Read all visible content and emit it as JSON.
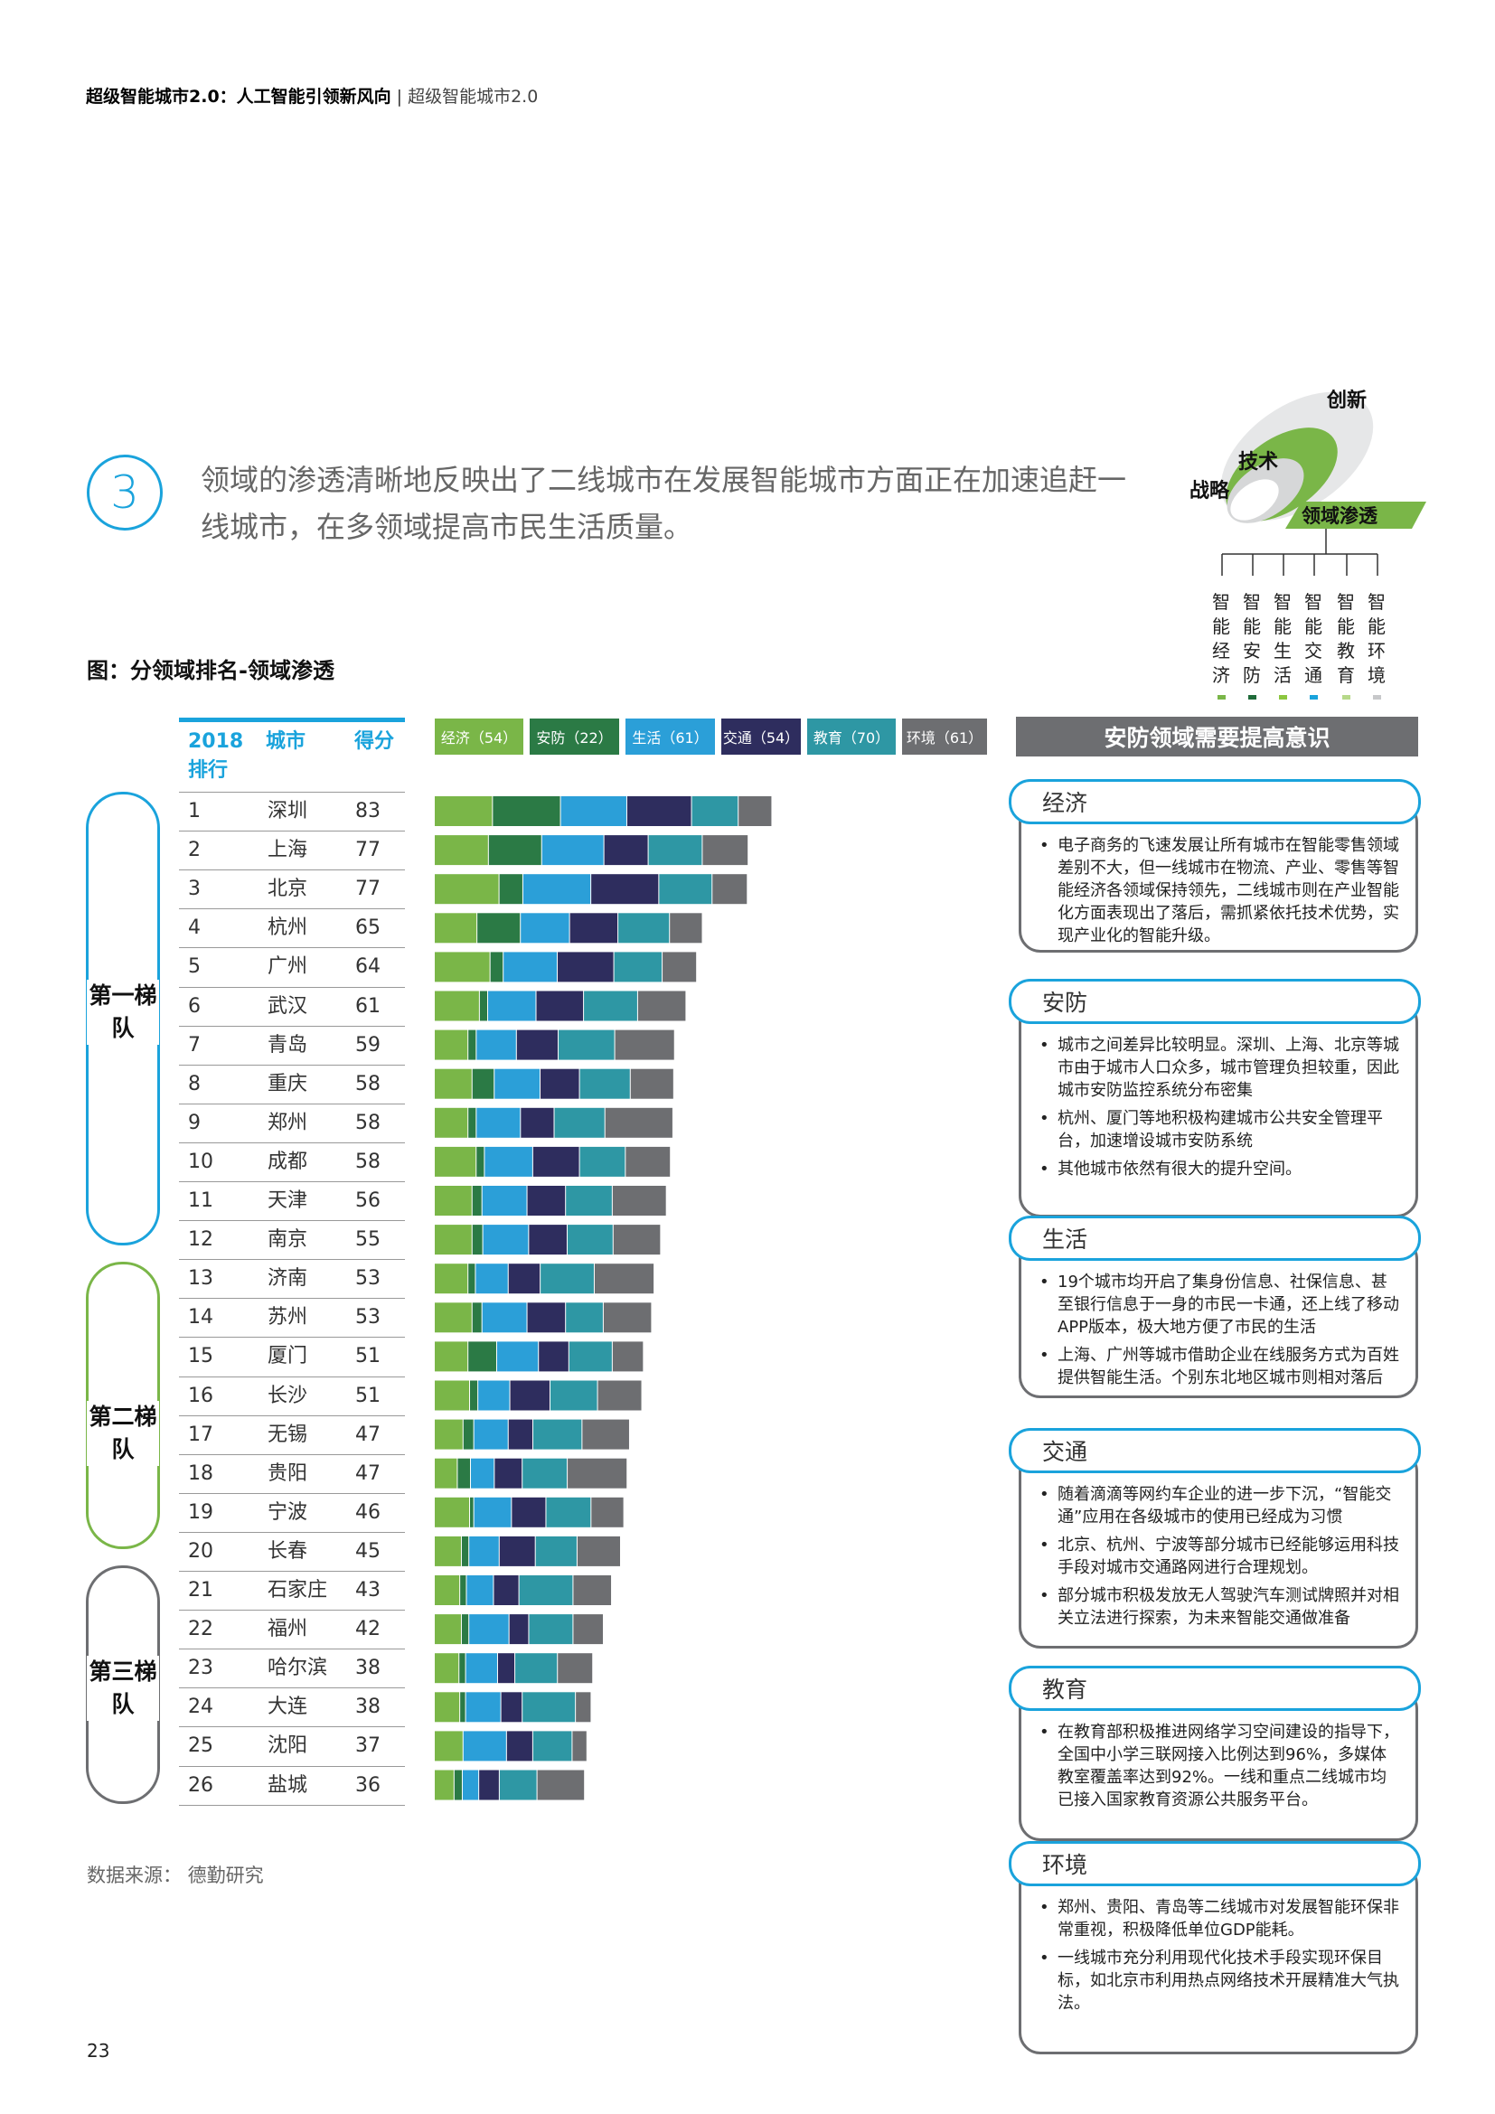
{
  "header": {
    "strong": "超级智能城市2.0：人工智能引领新风向",
    "sep": "|",
    "light": "超级智能城市2.0"
  },
  "intro": {
    "number": "3",
    "text": "领域的渗透清晰地反映出了二线城市在发展智能城市方面正在加速追赶一线城市，在多领域提高市民生活质量。"
  },
  "logo": {
    "innovation": "创新",
    "technology": "技术",
    "strategy": "战略",
    "penetration": "领域渗透",
    "columns": [
      "智能经济",
      "智能安防",
      "智能生活",
      "智能交通",
      "智能教育",
      "智能环境"
    ],
    "column_colors": [
      "#7ab648",
      "#1f6b3a",
      "#8cc63f",
      "#1aa3dc",
      "#b7d98a",
      "#c7c8ca"
    ]
  },
  "chart_title": "图：分领域排名-领域渗透",
  "table_headers": {
    "rank_line1": "2018",
    "rank_line2": "排行",
    "city": "城市",
    "score": "得分"
  },
  "tiers": {
    "first": "第一梯队",
    "second": "第二梯队",
    "third": "第三梯队",
    "first_color": "#1aa3dc",
    "second_color": "#7ab648",
    "third_color": "#6d6e71"
  },
  "chart_data": {
    "type": "bar",
    "orientation": "horizontal",
    "stacked": true,
    "categories": [
      "深圳",
      "上海",
      "北京",
      "杭州",
      "广州",
      "武汉",
      "青岛",
      "重庆",
      "郑州",
      "成都",
      "天津",
      "南京",
      "济南",
      "苏州",
      "厦门",
      "长沙",
      "无锡",
      "贵阳",
      "宁波",
      "长春",
      "石家庄",
      "福州",
      "哈尔滨",
      "大连",
      "沈阳",
      "盐城"
    ],
    "ranks": [
      "1",
      "2",
      "3",
      "4",
      "5",
      "6",
      "7",
      "8",
      "9",
      "10",
      "11",
      "12",
      "13",
      "14",
      "15",
      "16",
      "17",
      "18",
      "19",
      "20",
      "21",
      "22",
      "23",
      "24",
      "25",
      "26"
    ],
    "scores": [
      "83",
      "77",
      "77",
      "65",
      "64",
      "61",
      "59",
      "58",
      "58",
      "58",
      "56",
      "55",
      "53",
      "53",
      "51",
      "51",
      "47",
      "47",
      "46",
      "45",
      "43",
      "42",
      "38",
      "38",
      "37",
      "36"
    ],
    "series": [
      {
        "name": "经济（54）",
        "color": "#7ab648",
        "values": [
          70,
          65,
          78,
          51,
          67,
          54,
          40,
          45,
          40,
          50,
          45,
          45,
          40,
          45,
          40,
          42,
          34,
          27,
          42,
          32,
          30,
          32,
          29,
          30,
          34,
          23
        ]
      },
      {
        "name": "安防（22）",
        "color": "#2b7a45",
        "values": [
          82,
          64,
          28,
          52,
          15,
          9,
          9,
          26,
          9,
          9,
          11,
          12,
          8,
          11,
          34,
          9,
          12,
          15,
          4,
          8,
          7,
          8,
          7,
          6,
          0,
          9
        ]
      },
      {
        "name": "生活（61）",
        "color": "#2b9fd8",
        "values": [
          80,
          75,
          82,
          59,
          65,
          58,
          48,
          55,
          53,
          58,
          54,
          55,
          39,
          54,
          50,
          38,
          41,
          28,
          45,
          36,
          32,
          48,
          38,
          42,
          52,
          19
        ]
      },
      {
        "name": "交通（54）",
        "color": "#2e2d5e",
        "values": [
          78,
          53,
          82,
          58,
          68,
          57,
          50,
          47,
          40,
          56,
          46,
          46,
          38,
          46,
          36,
          48,
          29,
          33,
          41,
          43,
          30,
          23,
          20,
          25,
          31,
          24
        ]
      },
      {
        "name": "教育（70）",
        "color": "#2e97a4",
        "values": [
          56,
          65,
          64,
          62,
          58,
          65,
          68,
          61,
          61,
          55,
          56,
          55,
          65,
          45,
          52,
          57,
          59,
          54,
          54,
          50,
          65,
          53,
          51,
          64,
          47,
          45
        ]
      },
      {
        "name": "环境（61）",
        "color": "#6d6e71",
        "values": [
          40,
          55,
          42,
          39,
          41,
          58,
          72,
          52,
          82,
          54,
          65,
          57,
          72,
          58,
          37,
          53,
          57,
          72,
          39,
          52,
          46,
          36,
          42,
          18,
          17,
          57
        ]
      }
    ]
  },
  "panel": {
    "title": "安防领域需要提高意识",
    "cards": [
      {
        "tab": "经济",
        "bullets": [
          "电子商务的飞速发展让所有城市在智能零售领域差别不大，但一线城市在物流、产业、零售等智能经济各领域保持领先，二线城市则在产业智能化方面表现出了落后，需抓紧依托技术优势，实现产业化的智能升级。"
        ]
      },
      {
        "tab": "安防",
        "bullets": [
          "城市之间差异比较明显。深圳、上海、北京等城市由于城市人口众多，城市管理负担较重，因此城市安防监控系统分布密集",
          "杭州、厦门等地积极构建城市公共安全管理平台，加速增设城市安防系统",
          "其他城市依然有很大的提升空间。"
        ]
      },
      {
        "tab": "生活",
        "bullets": [
          "19个城市均开启了集身份信息、社保信息、甚至银行信息于一身的市民一卡通，还上线了移动APP版本，极大地方便了市民的生活",
          "上海、广州等城市借助企业在线服务方式为百姓提供智能生活。个别东北地区城市则相对落后"
        ]
      },
      {
        "tab": "交通",
        "bullets": [
          "随着滴滴等网约车企业的进一步下沉，“智能交通”应用在各级城市的使用已经成为习惯",
          "北京、杭州、宁波等部分城市已经能够运用科技手段对城市交通路网进行合理规划。",
          "部分城市积极发放无人驾驶汽车测试牌照并对相关立法进行探索，为未来智能交通做准备"
        ]
      },
      {
        "tab": "教育",
        "bullets": [
          "在教育部积极推进网络学习空间建设的指导下，全国中小学三联网接入比例达到96%，多媒体教室覆盖率达到92%。一线和重点二线城市均已接入国家教育资源公共服务平台。"
        ]
      },
      {
        "tab": "环境",
        "bullets": [
          "郑州、贵阳、青岛等二线城市对发展智能环保非常重视，积极降低单位GDP能耗。",
          "一线城市充分利用现代化技术手段实现环保目标，如北京市利用热点网络技术开展精准大气执法。"
        ]
      }
    ]
  },
  "source": "数据来源： 德勤研究",
  "page_number": "23"
}
